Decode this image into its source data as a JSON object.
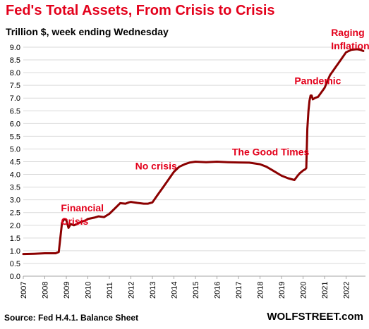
{
  "chart_data": {
    "type": "line",
    "title": "Fed's Total Assets, From Crisis to Crisis",
    "subtitle": "Trillion $, week ending Wednesday",
    "source": "Source: Fed H.4.1. Balance Sheet",
    "brand": "WOLFSTREET.com",
    "ylim": [
      0,
      9.0
    ],
    "xlim": [
      2007,
      2022.9
    ],
    "grid": true,
    "y_ticks": [
      "0.0",
      "0.5",
      "1.0",
      "1.5",
      "2.0",
      "2.5",
      "3.0",
      "3.5",
      "4.0",
      "4.5",
      "5.0",
      "5.5",
      "6.0",
      "6.5",
      "7.0",
      "7.5",
      "8.0",
      "8.5",
      "9.0"
    ],
    "x_ticks": [
      "2007",
      "2008",
      "2009",
      "2010",
      "2011",
      "2012",
      "2013",
      "2014",
      "2015",
      "2016",
      "2017",
      "2018",
      "2019",
      "2020",
      "2021",
      "2022"
    ],
    "line_color": "#8b0000",
    "annotation_color": "#e3001b",
    "annotations": [
      {
        "lines": [
          "Financial",
          "Crisis"
        ],
        "x": 2008.75,
        "y": 2.55
      },
      {
        "lines": [
          "No crisis"
        ],
        "x": 2012.2,
        "y": 4.2
      },
      {
        "lines": [
          "The Good Times"
        ],
        "x": 2016.7,
        "y": 4.75
      },
      {
        "lines": [
          "Pandemic"
        ],
        "x": 2019.6,
        "y": 7.55
      },
      {
        "lines": [
          "Raging",
          "Inflation"
        ],
        "x": 2021.3,
        "y": 9.45
      }
    ],
    "series": [
      {
        "x": [
          2007.0,
          2007.5,
          2008.0,
          2008.5,
          2008.65,
          2008.72,
          2008.8,
          2008.9,
          2009.0,
          2009.1,
          2009.2,
          2009.35,
          2009.5,
          2009.6,
          2009.75,
          2009.9,
          2010.0,
          2010.3,
          2010.5,
          2010.75,
          2011.0,
          2011.3,
          2011.5,
          2011.75,
          2011.9,
          2012.0,
          2012.3,
          2012.6,
          2012.8,
          2013.0,
          2013.25,
          2013.5,
          2013.75,
          2014.0,
          2014.25,
          2014.5,
          2014.75,
          2015.0,
          2015.5,
          2016.0,
          2016.5,
          2017.0,
          2017.5,
          2018.0,
          2018.3,
          2018.6,
          2019.0,
          2019.3,
          2019.6,
          2019.75,
          2019.85,
          2020.0,
          2020.1,
          2020.15,
          2020.2,
          2020.25,
          2020.3,
          2020.35,
          2020.4,
          2020.45,
          2020.55,
          2020.7,
          2021.0,
          2021.25,
          2021.5,
          2021.75,
          2022.0,
          2022.25,
          2022.5,
          2022.65,
          2022.8
        ],
        "y": [
          0.87,
          0.88,
          0.9,
          0.9,
          0.95,
          1.5,
          2.1,
          2.25,
          2.2,
          1.9,
          2.05,
          2.0,
          2.05,
          2.1,
          2.15,
          2.2,
          2.25,
          2.3,
          2.35,
          2.32,
          2.45,
          2.7,
          2.87,
          2.85,
          2.9,
          2.92,
          2.88,
          2.85,
          2.85,
          2.9,
          3.2,
          3.5,
          3.8,
          4.1,
          4.3,
          4.4,
          4.47,
          4.5,
          4.48,
          4.5,
          4.48,
          4.47,
          4.46,
          4.4,
          4.3,
          4.15,
          3.95,
          3.85,
          3.78,
          3.95,
          4.05,
          4.15,
          4.2,
          4.25,
          5.8,
          6.5,
          6.9,
          7.1,
          7.1,
          6.95,
          7.0,
          7.05,
          7.4,
          7.9,
          8.2,
          8.5,
          8.8,
          8.9,
          8.92,
          8.9,
          8.85
        ]
      }
    ]
  }
}
